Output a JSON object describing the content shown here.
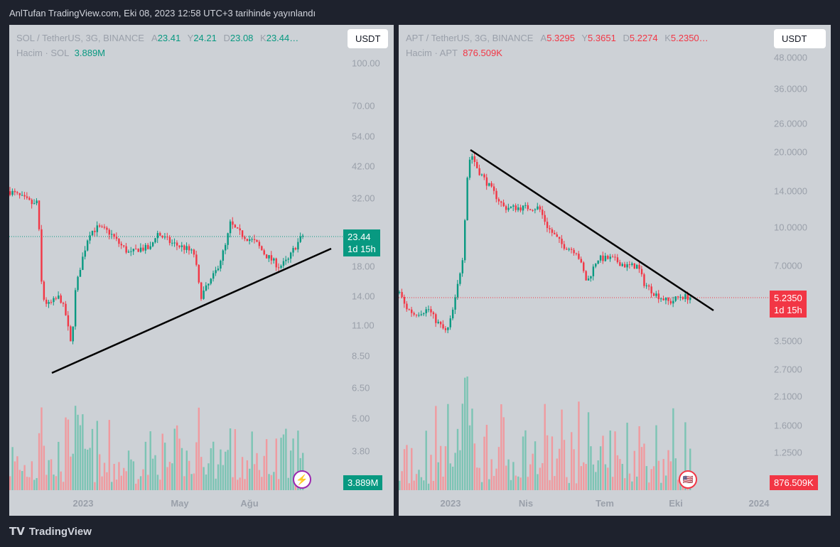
{
  "title": "AnlTufan TradingView.com, Eki 08, 2023 12:58 UTC+3 tarihinde yayınlandı",
  "footer": "TradingView",
  "charts": [
    {
      "symbol": "SOL / TetherUS, 3G, BINANCE",
      "o_label": "A",
      "o": "23.41",
      "h_label": "Y",
      "h": "24.21",
      "l_label": "D",
      "l": "23.08",
      "c_label": "K",
      "c": "23.44…",
      "vol_label": "Hacim · SOL",
      "vol": "3.889M",
      "currency": "USDT",
      "price_axis": [
        "100.00",
        "70.00",
        "54.00",
        "42.00",
        "32.00",
        "18.00",
        "14.00",
        "11.00",
        "8.50",
        "6.50",
        "5.00",
        "3.80"
      ],
      "last_price": "23.44",
      "countdown": "1d 15h",
      "vol_tag": "3.889M",
      "time_axis": [
        "2023",
        "May",
        "Ağu"
      ],
      "color": "#089981",
      "path": [
        [
          0,
          34
        ],
        [
          0.09,
          30
        ],
        [
          0.095,
          38
        ],
        [
          0.1,
          22
        ],
        [
          0.11,
          14
        ],
        [
          0.13,
          13
        ],
        [
          0.17,
          14
        ],
        [
          0.19,
          12
        ],
        [
          0.21,
          9
        ],
        [
          0.22,
          14
        ],
        [
          0.24,
          18
        ],
        [
          0.27,
          24
        ],
        [
          0.3,
          25
        ],
        [
          0.34,
          24
        ],
        [
          0.37,
          22
        ],
        [
          0.41,
          20
        ],
        [
          0.44,
          21
        ],
        [
          0.48,
          21
        ],
        [
          0.5,
          24
        ],
        [
          0.55,
          22
        ],
        [
          0.6,
          21
        ],
        [
          0.63,
          20
        ],
        [
          0.65,
          14
        ],
        [
          0.67,
          15
        ],
        [
          0.7,
          17
        ],
        [
          0.74,
          22
        ],
        [
          0.75,
          26
        ],
        [
          0.78,
          24
        ],
        [
          0.84,
          22
        ],
        [
          0.87,
          20
        ],
        [
          0.92,
          18
        ],
        [
          0.95,
          19
        ],
        [
          0.97,
          21
        ],
        [
          1,
          23.44
        ]
      ]
    },
    {
      "symbol": "APT / TetherUS, 3G, BINANCE",
      "o_label": "A",
      "o": "5.3295",
      "h_label": "Y",
      "h": "5.3651",
      "l_label": "D",
      "l": "5.2274",
      "c_label": "K",
      "c": "5.2350…",
      "vol_label": "Hacim · APT",
      "vol": "876.509K",
      "currency": "USDT",
      "price_axis": [
        "48.0000",
        "36.0000",
        "26.0000",
        "20.0000",
        "14.0000",
        "10.0000",
        "7.0000",
        "3.5000",
        "2.7000",
        "2.1000",
        "1.6000",
        "1.2500"
      ],
      "last_price": "5.2350",
      "countdown": "1d 15h",
      "vol_tag": "876.509K",
      "time_axis": [
        "2023",
        "Nis",
        "Tem",
        "Eki",
        "2024"
      ],
      "color": "#f23645",
      "path": [
        [
          0,
          5.5
        ],
        [
          0.02,
          4.8
        ],
        [
          0.05,
          4.5
        ],
        [
          0.1,
          4.7
        ],
        [
          0.12,
          4.3
        ],
        [
          0.16,
          3.8
        ],
        [
          0.17,
          4
        ],
        [
          0.19,
          5
        ],
        [
          0.22,
          8
        ],
        [
          0.23,
          15
        ],
        [
          0.245,
          20
        ],
        [
          0.27,
          17
        ],
        [
          0.32,
          14
        ],
        [
          0.36,
          12
        ],
        [
          0.41,
          12
        ],
        [
          0.48,
          12
        ],
        [
          0.51,
          10
        ],
        [
          0.56,
          8.5
        ],
        [
          0.61,
          8
        ],
        [
          0.645,
          6
        ],
        [
          0.68,
          7.5
        ],
        [
          0.73,
          7.5
        ],
        [
          0.78,
          7
        ],
        [
          0.82,
          7
        ],
        [
          0.84,
          6
        ],
        [
          0.88,
          5.4
        ],
        [
          0.93,
          5
        ],
        [
          0.965,
          5.3
        ],
        [
          1,
          5.235
        ]
      ]
    }
  ]
}
